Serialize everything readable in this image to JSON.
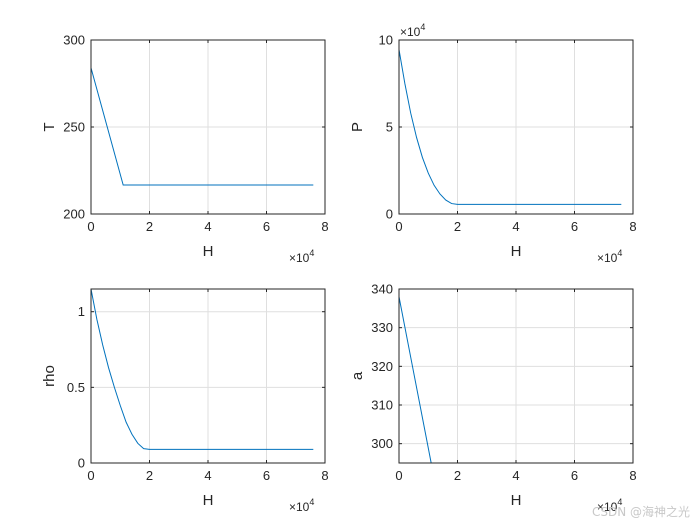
{
  "chart_data": [
    {
      "type": "line",
      "ylabel": "T",
      "xlabel": "H",
      "x_exponent_base": "×10",
      "x_exponent_power": "4",
      "y_exponent_base": "",
      "y_exponent_power": "",
      "xlim": [
        0,
        80000
      ],
      "ylim": [
        200,
        300
      ],
      "xticks": [
        0,
        20000,
        40000,
        60000,
        80000
      ],
      "xtick_labels": [
        "0",
        "2",
        "4",
        "6",
        "8"
      ],
      "yticks": [
        200,
        250,
        300
      ],
      "ytick_labels": [
        "200",
        "250",
        "300"
      ],
      "grid": true,
      "color": "#0072BD",
      "series": [
        {
          "x": [
            0,
            11000,
            20000,
            76000
          ],
          "y": [
            284,
            216.65,
            216.65,
            216.65
          ]
        }
      ]
    },
    {
      "type": "line",
      "ylabel": "P",
      "xlabel": "H",
      "x_exponent_base": "×10",
      "x_exponent_power": "4",
      "y_exponent_base": "×10",
      "y_exponent_power": "4",
      "xlim": [
        0,
        80000
      ],
      "ylim": [
        0,
        100000
      ],
      "xticks": [
        0,
        20000,
        40000,
        60000,
        80000
      ],
      "xtick_labels": [
        "0",
        "2",
        "4",
        "6",
        "8"
      ],
      "yticks": [
        0,
        50000,
        100000
      ],
      "ytick_labels": [
        "0",
        "5",
        "10"
      ],
      "grid": true,
      "color": "#0072BD",
      "series": [
        {
          "x": [
            0,
            2000,
            4000,
            6000,
            8000,
            10000,
            12000,
            14000,
            16000,
            18000,
            20000,
            76000
          ],
          "y": [
            94500,
            75000,
            58000,
            44000,
            32500,
            23500,
            16500,
            11500,
            8000,
            6000,
            5500,
            5500
          ]
        }
      ]
    },
    {
      "type": "line",
      "ylabel": "rho",
      "xlabel": "H",
      "x_exponent_base": "×10",
      "x_exponent_power": "4",
      "y_exponent_base": "",
      "y_exponent_power": "",
      "xlim": [
        0,
        80000
      ],
      "ylim": [
        0,
        1.15
      ],
      "xticks": [
        0,
        20000,
        40000,
        60000,
        80000
      ],
      "xtick_labels": [
        "0",
        "2",
        "4",
        "6",
        "8"
      ],
      "yticks": [
        0,
        0.5,
        1
      ],
      "ytick_labels": [
        "0",
        "0.5",
        "1"
      ],
      "grid": true,
      "color": "#0072BD",
      "series": [
        {
          "x": [
            0,
            2000,
            4000,
            6000,
            8000,
            10000,
            12000,
            14000,
            16000,
            18000,
            20000,
            76000
          ],
          "y": [
            1.15,
            0.95,
            0.78,
            0.63,
            0.5,
            0.38,
            0.27,
            0.19,
            0.13,
            0.095,
            0.09,
            0.09
          ]
        }
      ]
    },
    {
      "type": "line",
      "ylabel": "a",
      "xlabel": "H",
      "x_exponent_base": "×10",
      "x_exponent_power": "4",
      "y_exponent_base": "",
      "y_exponent_power": "",
      "xlim": [
        0,
        80000
      ],
      "ylim": [
        295,
        340
      ],
      "xticks": [
        0,
        20000,
        40000,
        60000,
        80000
      ],
      "xtick_labels": [
        "0",
        "2",
        "4",
        "6",
        "8"
      ],
      "yticks": [
        300,
        310,
        320,
        330,
        340
      ],
      "ytick_labels": [
        "300",
        "310",
        "320",
        "330",
        "340"
      ],
      "grid": true,
      "color": "#0072BD",
      "series": [
        {
          "x": [
            0,
            11000,
            76000
          ],
          "y": [
            338,
            295,
            295
          ]
        }
      ]
    }
  ],
  "watermark": "CSDN @海神之光"
}
